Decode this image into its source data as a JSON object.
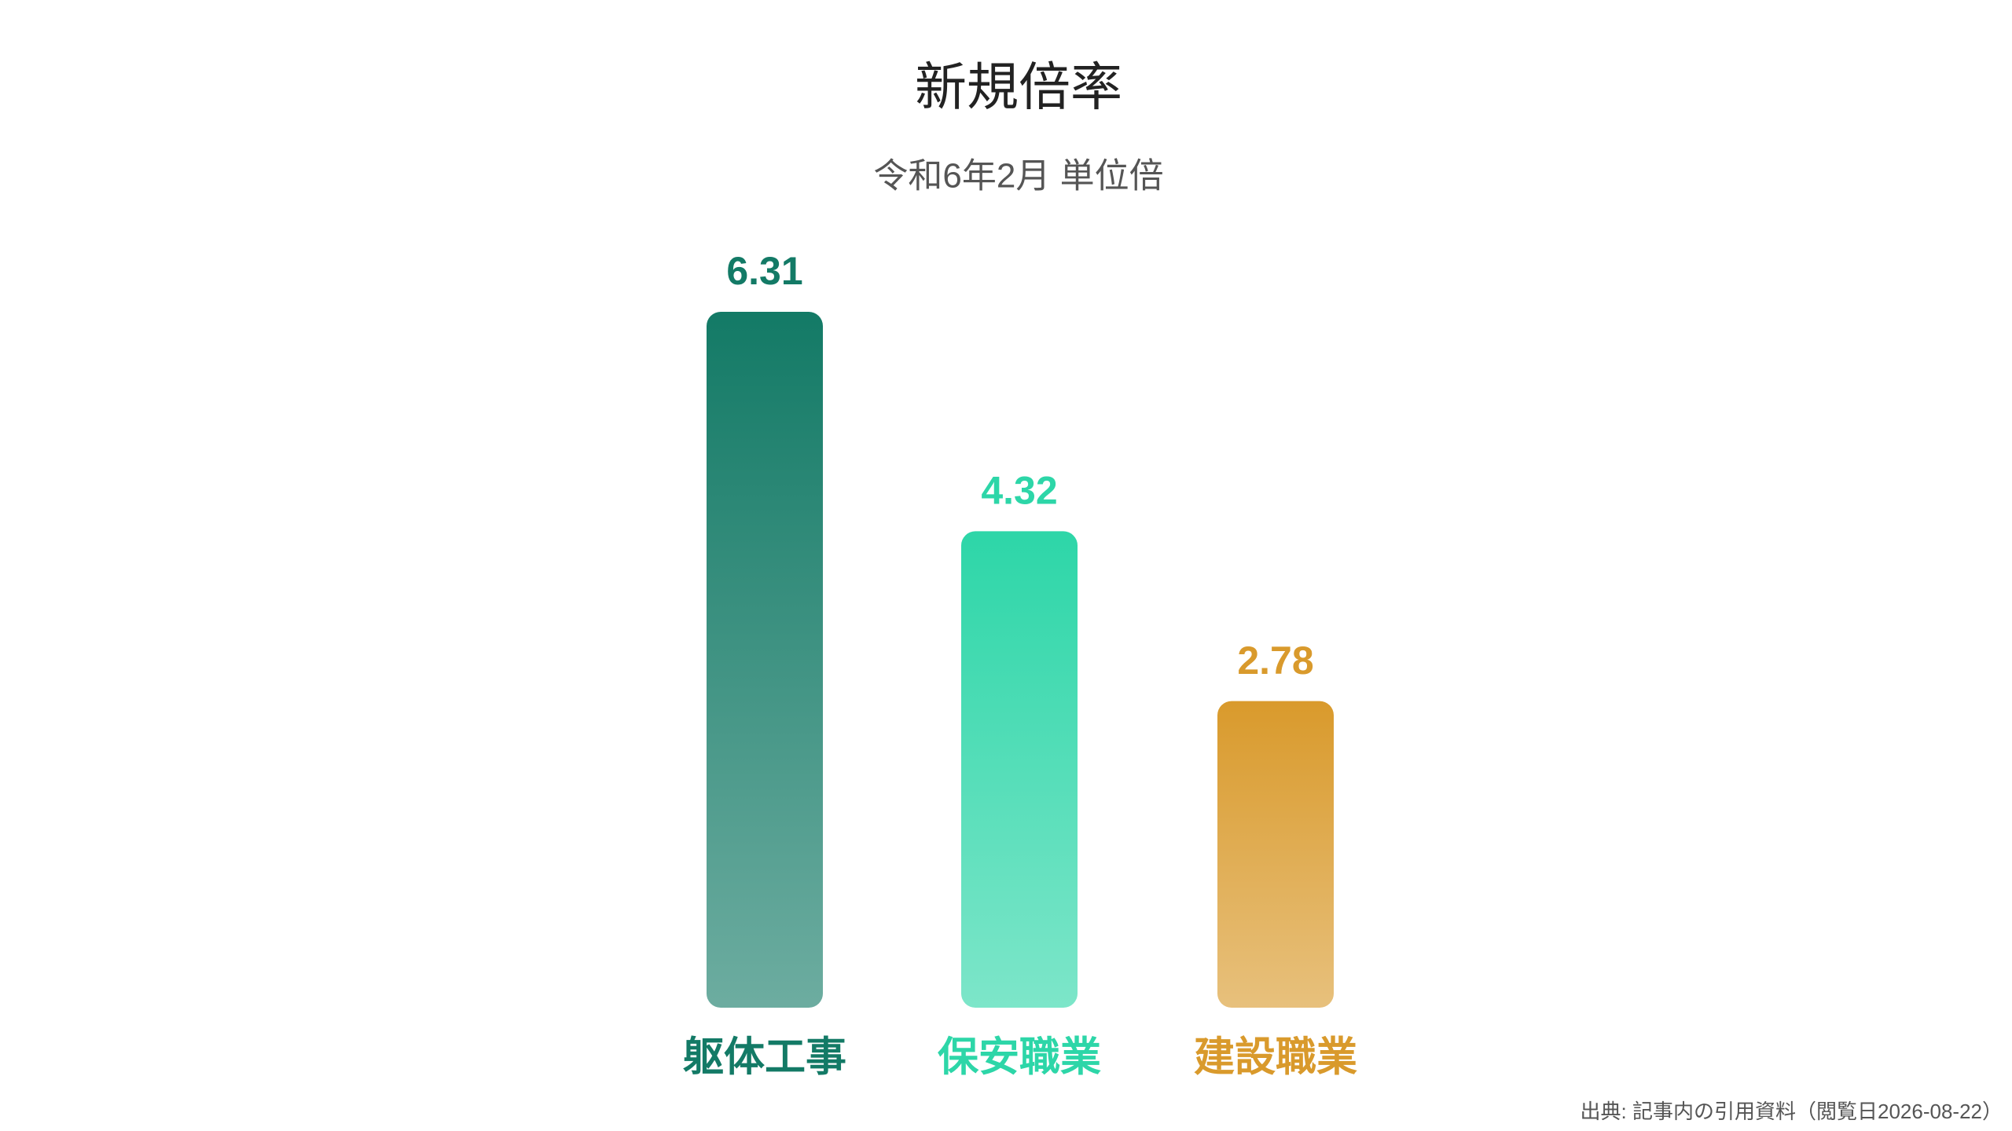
{
  "chart_data": {
    "type": "bar",
    "title": "新規倍率",
    "subtitle": "令和6年2月 単位倍",
    "categories": [
      "躯体工事",
      "保安職業",
      "建設職業"
    ],
    "values": [
      6.31,
      4.32,
      2.78
    ],
    "colors": [
      "#137a66",
      "#2dd6a8",
      "#d99a2c"
    ],
    "source": "出典: 記事内の引用資料（閲覧日2026-08-22）"
  }
}
